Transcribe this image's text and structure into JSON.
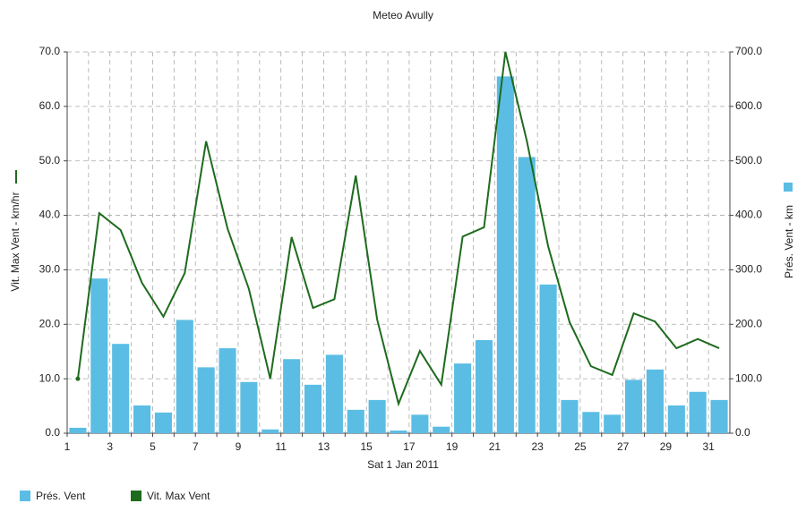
{
  "chart_data": {
    "type": "bar",
    "title": "Meteo  Avully",
    "xlabel": "Sat 1 Jan 2011",
    "ylabel": "Vit. Max Vent - km/hr",
    "y2label": "Prés. Vent - km",
    "categories": [
      "1",
      null,
      "3",
      null,
      "5",
      null,
      "7",
      null,
      "9",
      null,
      "11",
      null,
      "13",
      null,
      "15",
      null,
      "17",
      null,
      "19",
      null,
      "21",
      null,
      "23",
      null,
      "25",
      null,
      "27",
      null,
      "29",
      null,
      "31"
    ],
    "series": [
      {
        "name": "Prés. Vent",
        "type": "bar",
        "axis": "y2",
        "color": "#5bbde4",
        "values": [
          10,
          284,
          164,
          51,
          38,
          208,
          121,
          156,
          94,
          7,
          136,
          89,
          144,
          43,
          61,
          5,
          34,
          12,
          128,
          171,
          655,
          507,
          273,
          61,
          39,
          34,
          98,
          117,
          51,
          76,
          61
        ]
      },
      {
        "name": "Vit. Max Vent",
        "type": "line",
        "axis": "y",
        "color": "#1e6b1e",
        "values": [
          10,
          40.4,
          37.3,
          27.6,
          21.4,
          29.4,
          53.6,
          37.6,
          26.5,
          10,
          36,
          23,
          24.6,
          47.3,
          20.9,
          5.4,
          15.1,
          8.9,
          36.1,
          37.8,
          70,
          53.7,
          34.3,
          20.4,
          12.3,
          10.7,
          22,
          20.5,
          15.6,
          17.3,
          15.6
        ]
      }
    ],
    "ylim": [
      0,
      70
    ],
    "yticks": [
      {
        "value": 0,
        "label": "0.0"
      },
      {
        "value": 10,
        "label": "10.0"
      },
      {
        "value": 20,
        "label": "20.0"
      },
      {
        "value": 30,
        "label": "30.0"
      },
      {
        "value": 40,
        "label": "40.0"
      },
      {
        "value": 50,
        "label": "50.0"
      },
      {
        "value": 60,
        "label": "60.0"
      },
      {
        "value": 70,
        "label": "70.0"
      }
    ],
    "y2lim": [
      0,
      700
    ],
    "y2ticks": [
      {
        "value": 0,
        "label": "0.0"
      },
      {
        "value": 100,
        "label": "100.0"
      },
      {
        "value": 200,
        "label": "200.0"
      },
      {
        "value": 300,
        "label": "300.0"
      },
      {
        "value": 400,
        "label": "400.0"
      },
      {
        "value": 500,
        "label": "500.0"
      },
      {
        "value": 600,
        "label": "600.0"
      },
      {
        "value": 700,
        "label": "700.0"
      }
    ],
    "grid": true,
    "legend": "bottom"
  }
}
